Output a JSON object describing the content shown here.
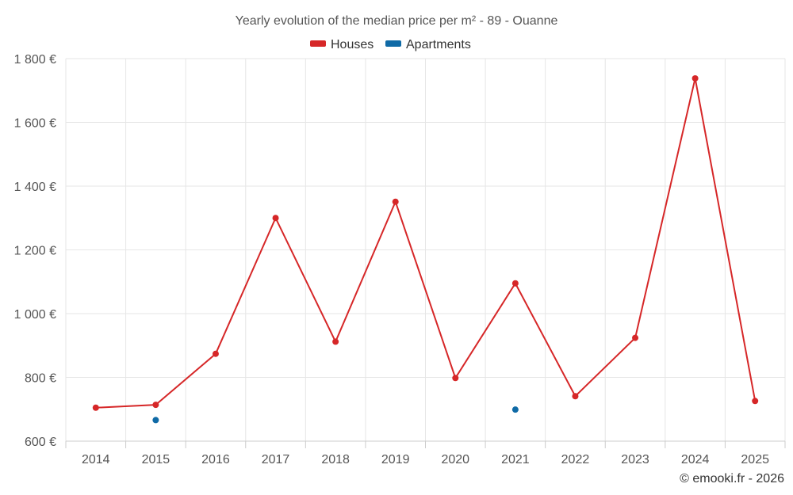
{
  "chart_data": {
    "type": "line",
    "title": "Yearly evolution of the median price per m² - 89 - Ouanne",
    "categories": [
      "2014",
      "2015",
      "2016",
      "2017",
      "2018",
      "2019",
      "2020",
      "2021",
      "2022",
      "2023",
      "2024",
      "2025"
    ],
    "ylim": [
      600,
      1800
    ],
    "yticks": [
      600,
      800,
      1000,
      1200,
      1400,
      1600,
      1800
    ],
    "ytick_labels": [
      "600 €",
      "800 €",
      "1 000 €",
      "1 200 €",
      "1 400 €",
      "1 600 €",
      "1 800 €"
    ],
    "series": [
      {
        "name": "Houses",
        "color": "#d62728",
        "values": [
          705,
          714,
          874,
          1300,
          912,
          1351,
          798,
          1095,
          741,
          924,
          1738,
          726
        ]
      },
      {
        "name": "Apartments",
        "color": "#0f6aa6",
        "values": [
          null,
          666,
          null,
          null,
          null,
          null,
          null,
          699,
          null,
          null,
          null,
          null
        ]
      }
    ],
    "grid": true,
    "legend": "top-center"
  },
  "credit": "© emooki.fr - 2026"
}
